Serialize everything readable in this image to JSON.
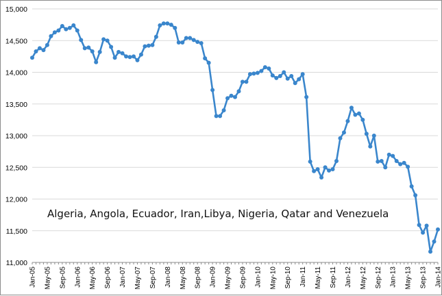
{
  "chart_data": {
    "type": "line",
    "title": "",
    "xlabel": "",
    "ylabel": "",
    "annotation": "Algeria, Angola, Ecuador, Iran,Libya, Nigeria, Qatar and Venezuela",
    "ylim": [
      11000,
      15000
    ],
    "y_ticks": [
      "11,000",
      "11,500",
      "12,000",
      "12,500",
      "13,000",
      "13,500",
      "14,000",
      "14,500",
      "15,000"
    ],
    "y_tick_values": [
      11000,
      11500,
      12000,
      12500,
      13000,
      13500,
      14000,
      14500,
      15000
    ],
    "x_ticks": [
      "Jan-05",
      "May-05",
      "Sep-05",
      "Jan-06",
      "May-06",
      "Sep-06",
      "Jan-07",
      "May-07",
      "Sep-07",
      "Jan-08",
      "May-08",
      "Sep-08",
      "Jan-09",
      "May-09",
      "Sep-09",
      "Jan-10",
      "May-10",
      "Sep-10",
      "Jan-11",
      "May-11",
      "Sep-11",
      "Jan-12",
      "May-12",
      "Sep-12",
      "Jan-13",
      "May-13",
      "Sep-13",
      "Jan-14"
    ],
    "grid": "horizontal",
    "line_color": "#3a86cc",
    "series": [
      {
        "values": [
          14230,
          14330,
          14380,
          14350,
          14430,
          14570,
          14630,
          14660,
          14730,
          14680,
          14700,
          14740,
          14660,
          14510,
          14380,
          14390,
          14330,
          14160,
          14320,
          14520,
          14500,
          14400,
          14230,
          14320,
          14300,
          14250,
          14240,
          14250,
          14190,
          14280,
          14410,
          14420,
          14430,
          14560,
          14740,
          14770,
          14770,
          14750,
          14700,
          14470,
          14470,
          14540,
          14540,
          14510,
          14480,
          14460,
          14220,
          14150,
          13720,
          13310,
          13310,
          13400,
          13590,
          13630,
          13610,
          13700,
          13850,
          13850,
          13970,
          13980,
          13990,
          14020,
          14080,
          14060,
          13950,
          13910,
          13940,
          14000,
          13900,
          13940,
          13830,
          13890,
          13970,
          13610,
          12590,
          12440,
          12470,
          12340,
          12500,
          12450,
          12470,
          12600,
          12960,
          13050,
          13230,
          13440,
          13330,
          13350,
          13250,
          13030,
          12830,
          13000,
          12590,
          12600,
          12500,
          12700,
          12680,
          12600,
          12550,
          12570,
          12510,
          12200,
          12060,
          11590,
          11470,
          11580,
          11170,
          11330,
          11520
        ]
      }
    ]
  }
}
